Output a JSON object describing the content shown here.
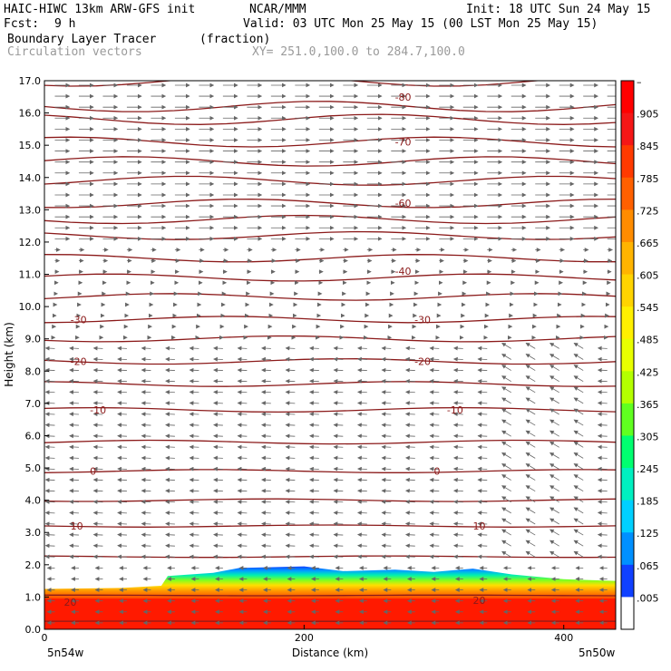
{
  "header": {
    "model": "HAIC-HIWC 13km ARW-GFS init",
    "org": "NCAR/MMM",
    "init": "Init: 18 UTC Sun 24 May 15",
    "fcst_label": "Fcst:",
    "fcst_value": "9 h",
    "valid": "Valid: 03 UTC Mon 25 May 15 (00 LST Mon 25 May 15)",
    "field": "Boundary Layer Tracer",
    "units": "(fraction)",
    "vectors": "Circulation vectors",
    "xy": "XY= 251.0,100.0 to 284.7,100.0"
  },
  "chart_data": {
    "type": "cross-section",
    "xlabel": "Distance (km)",
    "ylabel": "Height (km)",
    "xlim": [
      0,
      440
    ],
    "ylim": [
      0,
      17
    ],
    "x_ticks": [
      "0",
      "200",
      "400"
    ],
    "y_ticks": [
      "0.0",
      "1.0",
      "2.0",
      "3.0",
      "4.0",
      "5.0",
      "6.0",
      "7.0",
      "8.0",
      "9.0",
      "10.0",
      "11.0",
      "12.0",
      "13.0",
      "14.0",
      "15.0",
      "16.0",
      "17.0"
    ],
    "left_endpoint": "5n54w",
    "right_endpoint": "5n50w",
    "colorbar_labels": [
      "–",
      ".905",
      ".845",
      ".785",
      ".725",
      ".665",
      ".605",
      ".545",
      ".485",
      ".425",
      ".365",
      ".305",
      ".245",
      ".185",
      ".125",
      ".065",
      ".005"
    ],
    "colorbar_colors": [
      "#ff0000",
      "#f51616",
      "#ff3a00",
      "#ff6000",
      "#ff8c00",
      "#ffb400",
      "#ffd400",
      "#fff000",
      "#e8ff00",
      "#b4ff00",
      "#60ff20",
      "#00ff70",
      "#00f0c0",
      "#00d0ff",
      "#0090ff",
      "#1040ff",
      "#ffffff"
    ],
    "isotherm_labels": [
      {
        "text": "-80",
        "x": 270,
        "y": 16.5
      },
      {
        "text": "-70",
        "x": 270,
        "y": 15.1
      },
      {
        "text": "-60",
        "x": 270,
        "y": 13.2
      },
      {
        "text": "-40",
        "x": 270,
        "y": 11.1
      },
      {
        "text": "-30",
        "x": 20,
        "y": 9.6
      },
      {
        "text": "-30",
        "x": 285,
        "y": 9.6
      },
      {
        "text": "-20",
        "x": 20,
        "y": 8.3
      },
      {
        "text": "-20",
        "x": 285,
        "y": 8.3
      },
      {
        "text": "-10",
        "x": 35,
        "y": 6.8
      },
      {
        "text": "-10",
        "x": 310,
        "y": 6.8
      },
      {
        "text": "0",
        "x": 35,
        "y": 4.9
      },
      {
        "text": "0",
        "x": 300,
        "y": 4.9
      },
      {
        "text": "10",
        "x": 20,
        "y": 3.2
      },
      {
        "text": "10",
        "x": 330,
        "y": 3.2
      },
      {
        "text": "20",
        "x": 15,
        "y": 0.85
      },
      {
        "text": "20",
        "x": 330,
        "y": 0.9
      }
    ],
    "isotherm_heights": [
      0.25,
      1.05,
      2.25,
      3.2,
      4.0,
      4.9,
      5.8,
      6.8,
      7.6,
      8.3,
      9.0,
      9.6,
      10.3,
      10.9,
      11.5,
      12.2,
      12.7,
      13.2,
      13.9,
      14.5,
      15.1,
      15.8,
      16.2,
      17.0
    ]
  }
}
